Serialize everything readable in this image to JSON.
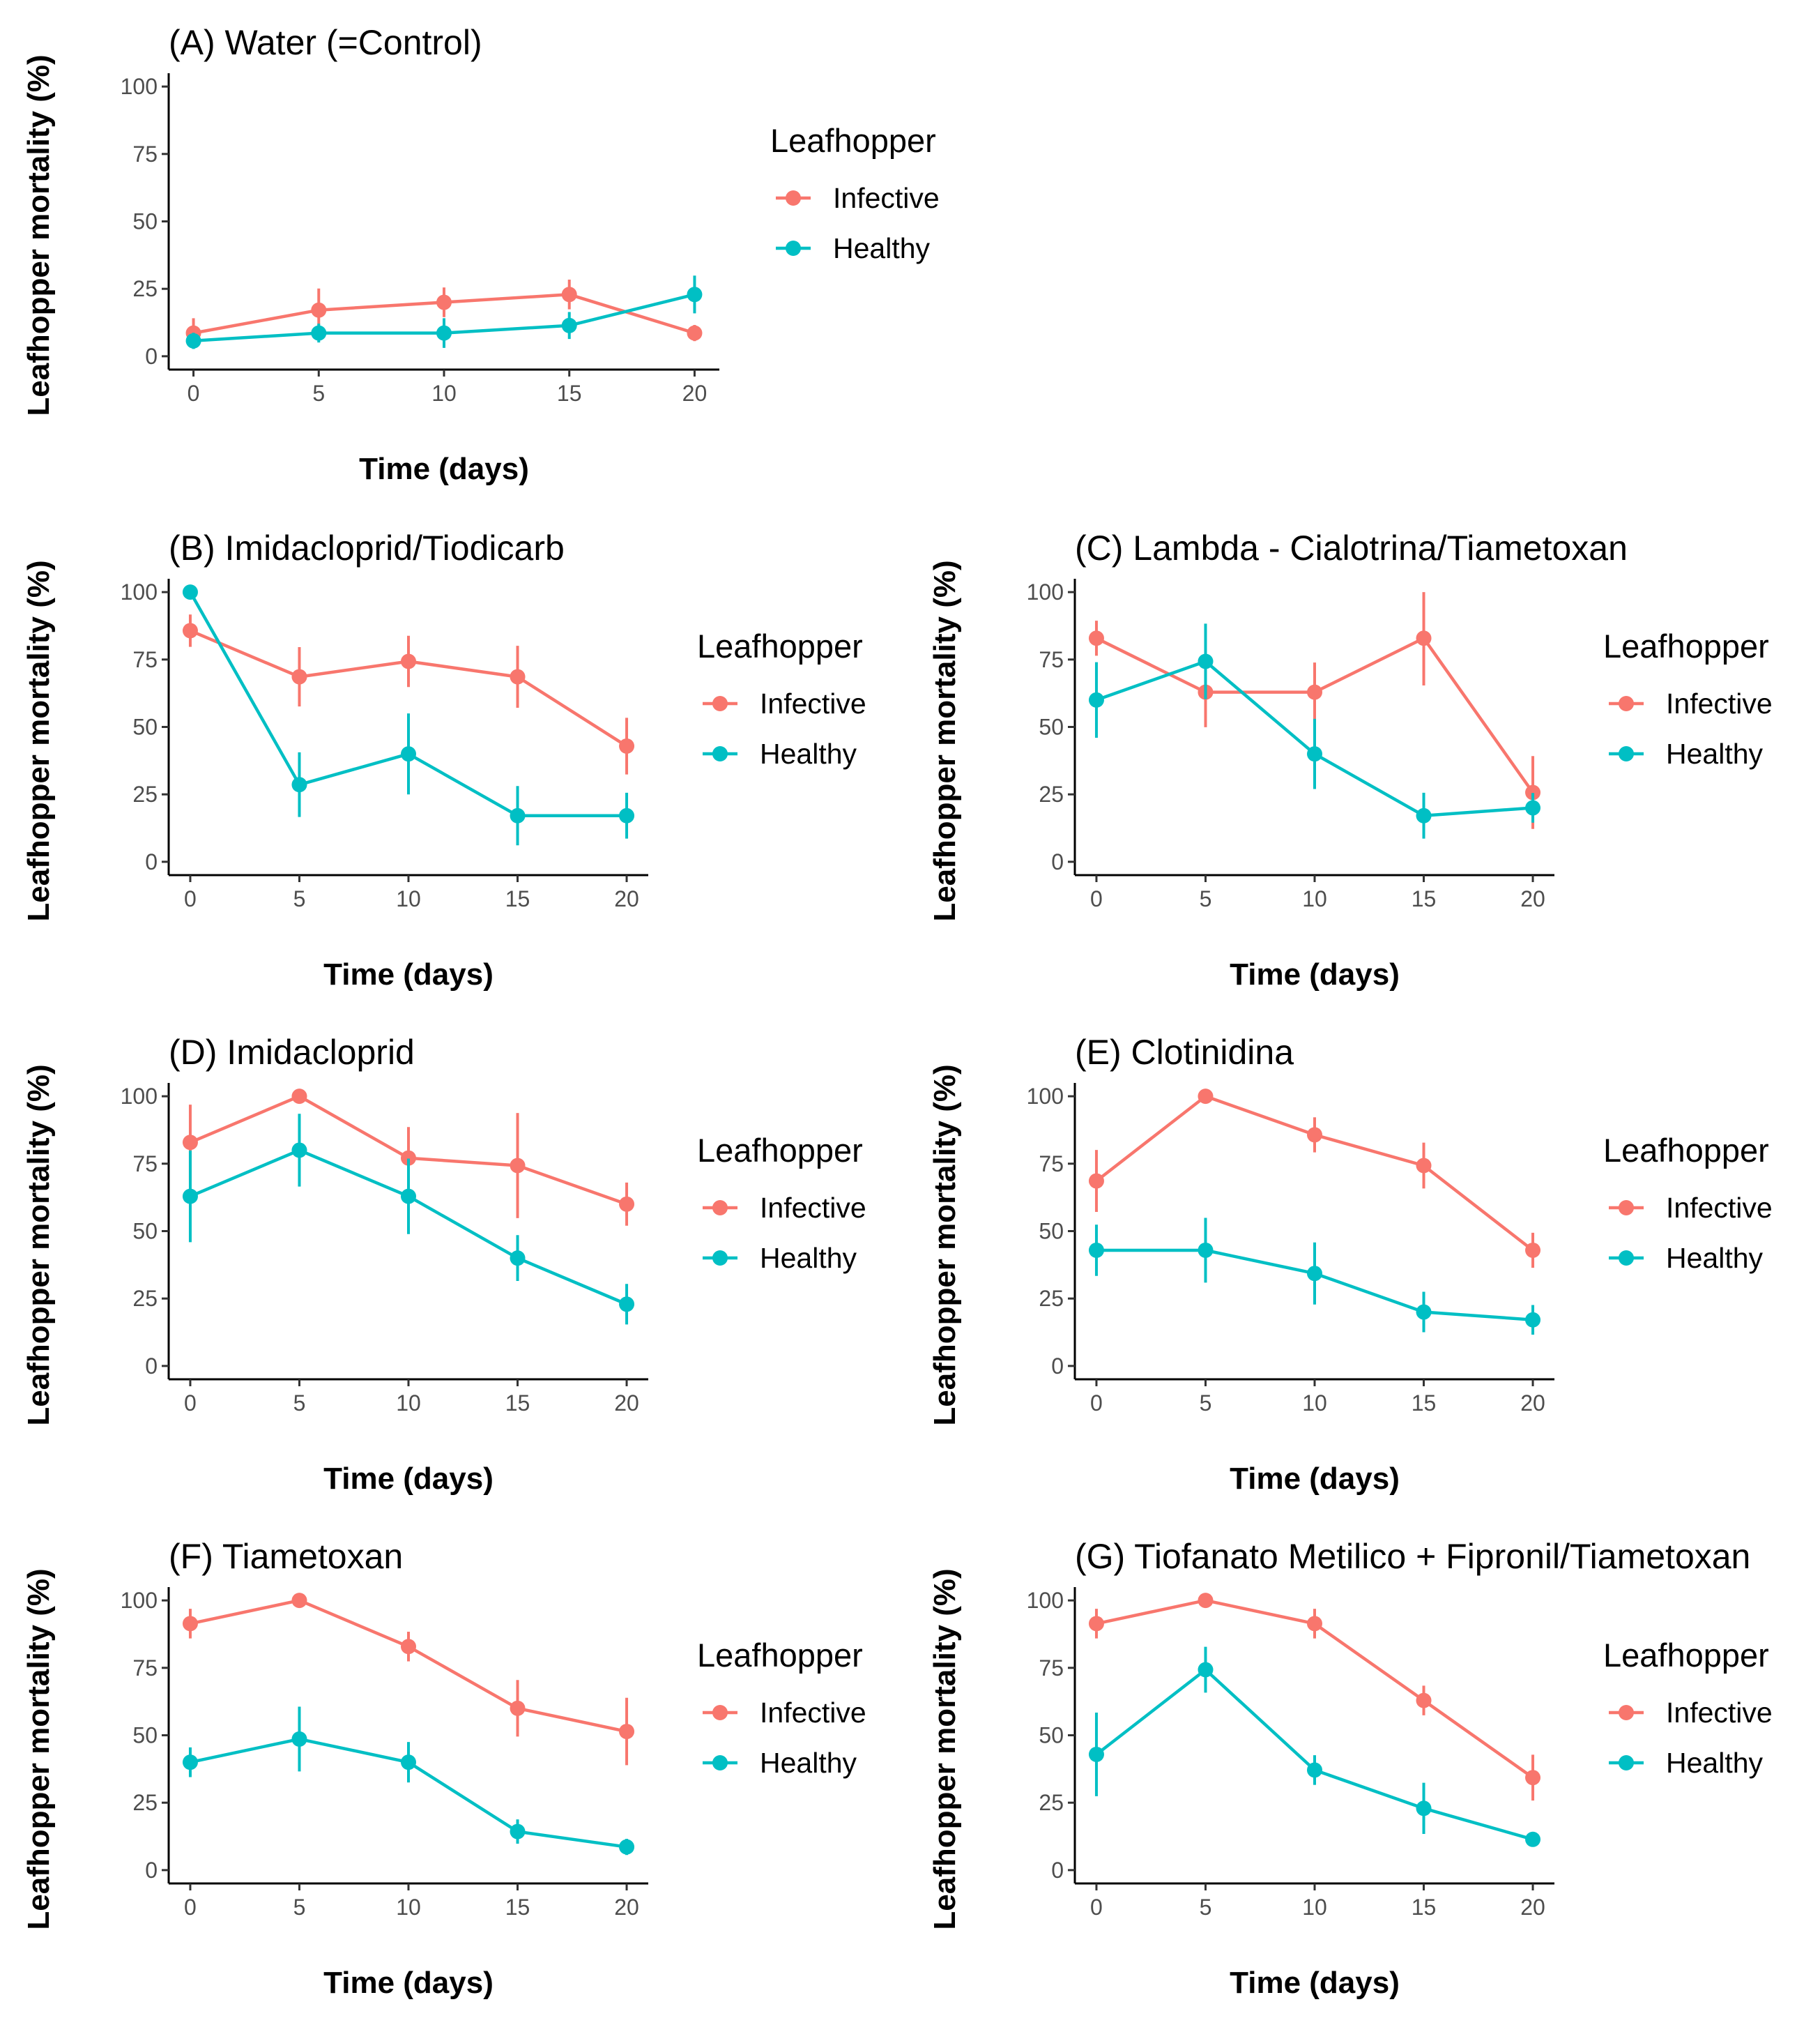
{
  "chart_data": [
    {
      "type": "line",
      "title": "(A) Water (=Control)",
      "xlabel": "Time (days)",
      "ylabel": "Leafhopper mortality (%)",
      "x": [
        0,
        5,
        10,
        15,
        20
      ],
      "xticks": [
        "0",
        "5",
        "10",
        "15",
        "20"
      ],
      "yticks": [
        "0",
        "25",
        "50",
        "75",
        "100"
      ],
      "ylim": [
        0,
        100
      ],
      "grid": false,
      "legend_title": "Leafhopper",
      "series": [
        {
          "name": "Infective",
          "color": "#F8766D",
          "values": [
            8.6,
            17.1,
            20,
            22.9,
            8.6
          ],
          "err": [
            5.5,
            8,
            5.5,
            5.5,
            3
          ]
        },
        {
          "name": "Healthy",
          "color": "#00BFC4",
          "values": [
            5.7,
            8.6,
            8.6,
            11.4,
            22.9
          ],
          "err": [
            3,
            3.5,
            5.5,
            5,
            7
          ]
        }
      ]
    },
    {
      "type": "line",
      "title": "(B) Imidacloprid/Tiodicarb",
      "xlabel": "Time (days)",
      "ylabel": "Leafhopper mortality (%)",
      "x": [
        0,
        5,
        10,
        15,
        20
      ],
      "xticks": [
        "0",
        "5",
        "10",
        "15",
        "20"
      ],
      "yticks": [
        "0",
        "25",
        "50",
        "75",
        "100"
      ],
      "ylim": [
        0,
        100
      ],
      "grid": false,
      "legend_title": "Leafhopper",
      "series": [
        {
          "name": "Infective",
          "color": "#F8766D",
          "values": [
            85.7,
            68.6,
            74.3,
            68.6,
            42.9
          ],
          "err": [
            6,
            11,
            9.5,
            11.5,
            10.5
          ]
        },
        {
          "name": "Healthy",
          "color": "#00BFC4",
          "values": [
            100,
            28.6,
            40,
            17.1,
            17.1
          ],
          "err": [
            0,
            12,
            15,
            11,
            8.5
          ]
        }
      ]
    },
    {
      "type": "line",
      "title": "(C) Lambda - Cialotrina/Tiametoxan",
      "xlabel": "Time (days)",
      "ylabel": "Leafhopper mortality (%)",
      "x": [
        0,
        5,
        10,
        15,
        20
      ],
      "xticks": [
        "0",
        "5",
        "10",
        "15",
        "20"
      ],
      "yticks": [
        "0",
        "25",
        "50",
        "75",
        "100"
      ],
      "ylim": [
        0,
        100
      ],
      "grid": false,
      "legend_title": "Leafhopper",
      "series": [
        {
          "name": "Infective",
          "color": "#F8766D",
          "values": [
            82.9,
            62.9,
            62.9,
            82.9,
            25.7
          ],
          "err": [
            6.5,
            13,
            11,
            17.5,
            13.5
          ]
        },
        {
          "name": "Healthy",
          "color": "#00BFC4",
          "values": [
            60,
            74.3,
            40,
            17.1,
            20
          ],
          "err": [
            14,
            14,
            13,
            8.5,
            5.5
          ]
        }
      ]
    },
    {
      "type": "line",
      "title": "(D) Imidacloprid",
      "xlabel": "Time (days)",
      "ylabel": "Leafhopper mortality (%)",
      "x": [
        0,
        5,
        10,
        15,
        20
      ],
      "xticks": [
        "0",
        "5",
        "10",
        "15",
        "20"
      ],
      "yticks": [
        "0",
        "25",
        "50",
        "75",
        "100"
      ],
      "ylim": [
        0,
        100
      ],
      "grid": false,
      "legend_title": "Leafhopper",
      "series": [
        {
          "name": "Infective",
          "color": "#F8766D",
          "values": [
            82.9,
            100,
            77.1,
            74.3,
            60
          ],
          "err": [
            14,
            0,
            11.5,
            19.5,
            8
          ]
        },
        {
          "name": "Healthy",
          "color": "#00BFC4",
          "values": [
            62.9,
            80,
            62.9,
            40,
            22.9
          ],
          "err": [
            17,
            13.5,
            14,
            8.5,
            7.5
          ]
        }
      ]
    },
    {
      "type": "line",
      "title": "(E) Clotinidina",
      "xlabel": "Time (days)",
      "ylabel": "Leafhopper mortality (%)",
      "x": [
        0,
        5,
        10,
        15,
        20
      ],
      "xticks": [
        "0",
        "5",
        "10",
        "15",
        "20"
      ],
      "yticks": [
        "0",
        "25",
        "50",
        "75",
        "100"
      ],
      "ylim": [
        0,
        100
      ],
      "grid": false,
      "legend_title": "Leafhopper",
      "series": [
        {
          "name": "Infective",
          "color": "#F8766D",
          "values": [
            68.6,
            100,
            85.7,
            74.3,
            42.9
          ],
          "err": [
            11.5,
            0,
            6.5,
            8.5,
            6.5
          ]
        },
        {
          "name": "Healthy",
          "color": "#00BFC4",
          "values": [
            42.9,
            42.9,
            34.3,
            20,
            17.1
          ],
          "err": [
            9.5,
            12,
            11.5,
            7.5,
            5.5
          ]
        }
      ]
    },
    {
      "type": "line",
      "title": "(F) Tiametoxan",
      "xlabel": "Time (days)",
      "ylabel": "Leafhopper mortality (%)",
      "x": [
        0,
        5,
        10,
        15,
        20
      ],
      "xticks": [
        "0",
        "5",
        "10",
        "15",
        "20"
      ],
      "yticks": [
        "0",
        "25",
        "50",
        "75",
        "100"
      ],
      "ylim": [
        0,
        100
      ],
      "grid": false,
      "legend_title": "Leafhopper",
      "series": [
        {
          "name": "Infective",
          "color": "#F8766D",
          "values": [
            91.4,
            100,
            82.9,
            60,
            51.4
          ],
          "err": [
            5.5,
            0,
            5.5,
            10.5,
            12.5
          ]
        },
        {
          "name": "Healthy",
          "color": "#00BFC4",
          "values": [
            40,
            48.6,
            40,
            14.3,
            8.6
          ],
          "err": [
            5.5,
            12,
            7.5,
            4.5,
            3
          ]
        }
      ]
    },
    {
      "type": "line",
      "title": "(G) Tiofanato Metilico + Fipronil/Tiametoxan",
      "xlabel": "Time (days)",
      "ylabel": "Leafhopper mortality (%)",
      "x": [
        0,
        5,
        10,
        15,
        20
      ],
      "xticks": [
        "0",
        "5",
        "10",
        "15",
        "20"
      ],
      "yticks": [
        "0",
        "25",
        "50",
        "75",
        "100"
      ],
      "ylim": [
        0,
        100
      ],
      "grid": false,
      "legend_title": "Leafhopper",
      "series": [
        {
          "name": "Infective",
          "color": "#F8766D",
          "values": [
            91.4,
            100,
            91.4,
            62.9,
            34.3
          ],
          "err": [
            5.5,
            0,
            5.5,
            5.5,
            8.5
          ]
        },
        {
          "name": "Healthy",
          "color": "#00BFC4",
          "values": [
            42.9,
            74.3,
            37.1,
            22.9,
            11.4
          ],
          "err": [
            15.5,
            8.5,
            5.5,
            9.5,
            2.5
          ]
        }
      ]
    }
  ]
}
